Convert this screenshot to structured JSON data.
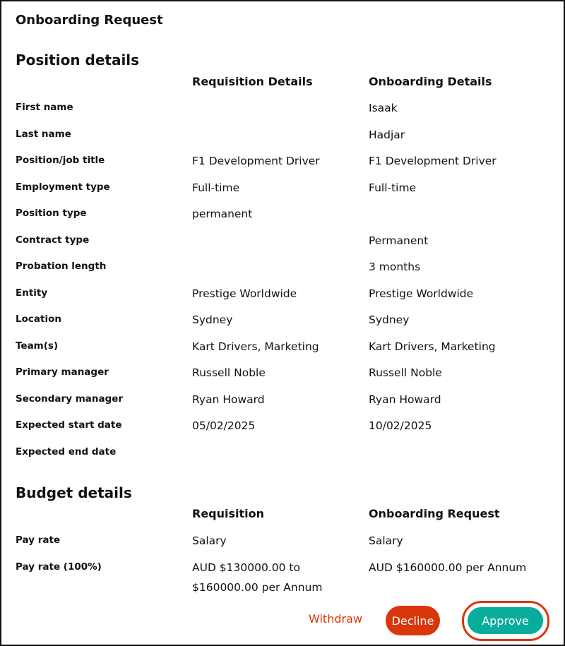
{
  "title": "Onboarding Request",
  "position": {
    "heading": "Position details",
    "col1": "Requisition Details",
    "col2": "Onboarding Details",
    "rows": [
      {
        "label": "First name",
        "req": "",
        "onb": "Isaak"
      },
      {
        "label": "Last name",
        "req": "",
        "onb": "Hadjar"
      },
      {
        "label": "Position/job title",
        "req": "F1 Development Driver",
        "onb": "F1 Development Driver"
      },
      {
        "label": "Employment type",
        "req": "Full-time",
        "onb": "Full-time"
      },
      {
        "label": "Position type",
        "req": "permanent",
        "onb": ""
      },
      {
        "label": "Contract type",
        "req": "",
        "onb": "Permanent"
      },
      {
        "label": "Probation length",
        "req": "",
        "onb": "3 months"
      },
      {
        "label": "Entity",
        "req": "Prestige Worldwide",
        "onb": "Prestige Worldwide"
      },
      {
        "label": "Location",
        "req": "Sydney",
        "onb": "Sydney"
      },
      {
        "label": "Team(s)",
        "req": "Kart Drivers, Marketing",
        "onb": "Kart Drivers, Marketing"
      },
      {
        "label": "Primary manager",
        "req": "Russell Noble",
        "onb": "Russell Noble"
      },
      {
        "label": "Secondary manager",
        "req": "Ryan Howard",
        "onb": "Ryan Howard"
      },
      {
        "label": "Expected start date",
        "req": "05/02/2025",
        "onb": "10/02/2025"
      },
      {
        "label": "Expected end date",
        "req": "",
        "onb": ""
      }
    ]
  },
  "budget": {
    "heading": "Budget details",
    "col1": "Requisition",
    "col2": "Onboarding Request",
    "rows": [
      {
        "label": "Pay rate",
        "req": "Salary",
        "onb": "Salary"
      },
      {
        "label": "Pay rate (100%)",
        "req": "AUD $130000.00 to $160000.00 per Annum",
        "onb": "AUD $160000.00 per Annum"
      }
    ]
  },
  "actions": {
    "withdraw": "Withdraw",
    "decline": "Decline",
    "approve": "Approve"
  },
  "colors": {
    "accent_red": "#d9360b",
    "approve_teal": "#08ad9b"
  }
}
